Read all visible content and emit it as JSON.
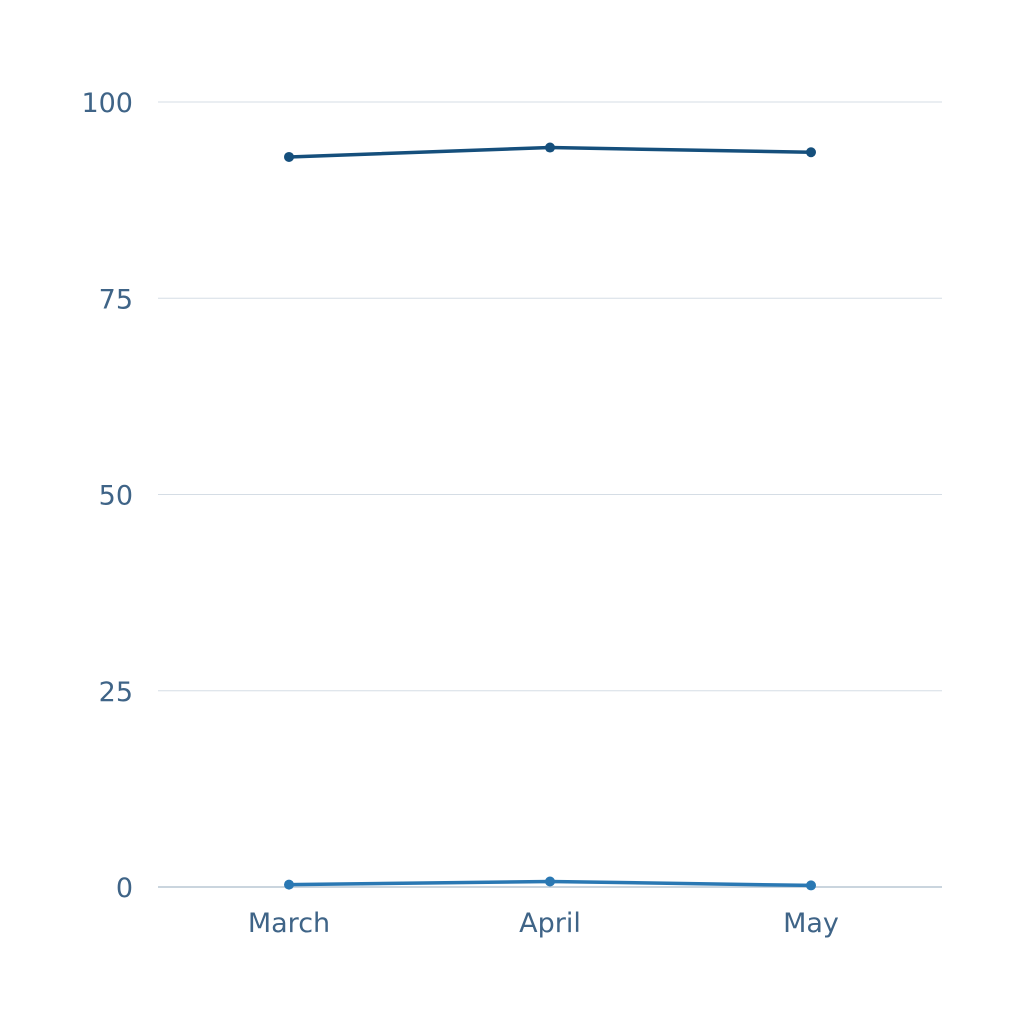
{
  "chart_data": {
    "type": "line",
    "title": "",
    "xlabel": "",
    "ylabel": "",
    "categories": [
      "March",
      "April",
      "May"
    ],
    "ylim": [
      0,
      100
    ],
    "yticks": [
      0,
      25,
      50,
      75,
      100
    ],
    "ytick_labels": [
      "0",
      "25",
      "50",
      "75",
      "100"
    ],
    "grid": true,
    "legend": "none",
    "series": [
      {
        "values": [
          93.0,
          94.2,
          93.6
        ],
        "color": "#154f7c"
      },
      {
        "values": [
          0.3,
          0.7,
          0.2
        ],
        "color": "#2a78b3"
      }
    ],
    "colors": {
      "tick_text": "#3f6487",
      "grid": "#d5dde5",
      "baseline": "#b9c7d4"
    }
  }
}
